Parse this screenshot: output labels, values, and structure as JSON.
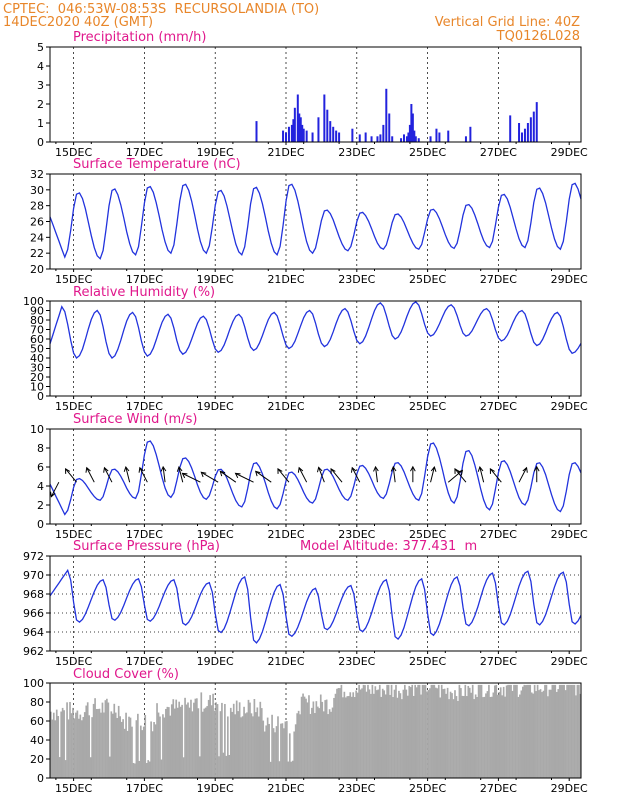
{
  "header": {
    "left_line1": "CPTEC:  046:53W-08:53S  RECURSOLANDIA (TO)",
    "left_line2": "14DEC2020 40Z (GMT)",
    "right_line1": "Vertical Grid Line: 40Z",
    "right_line2": "TQ0126L028"
  },
  "colors": {
    "header": "#e8862a",
    "title": "#e0188c",
    "line": "#2233dd",
    "bars": "#2222dd",
    "cloud": "#a9a9a9",
    "arrow": "#000000"
  },
  "x_axis": {
    "labels": [
      "15DEC",
      "17DEC",
      "19DEC",
      "21DEC",
      "23DEC",
      "25DEC",
      "27DEC",
      "29DEC"
    ]
  },
  "chart_data": [
    {
      "type": "bar",
      "title": "Precipitation (mm/h)",
      "ylim": [
        0,
        5
      ],
      "yticks": [
        0,
        1,
        2,
        3,
        4,
        5
      ],
      "hours": [
        140,
        158,
        160,
        162,
        164,
        165,
        166,
        168,
        169,
        170,
        171,
        172,
        174,
        178,
        182,
        186,
        188,
        190,
        192,
        194,
        196,
        205,
        210,
        214,
        218,
        222,
        224,
        226,
        228,
        230,
        232,
        238,
        240,
        242,
        243,
        244,
        245,
        246,
        247,
        248,
        250,
        258,
        262,
        264,
        270,
        282,
        285,
        312,
        318,
        320,
        322,
        324,
        326,
        328,
        330
      ],
      "values": [
        1.1,
        0.6,
        0.5,
        0.8,
        0.9,
        1.2,
        1.8,
        2.5,
        1.5,
        1.3,
        0.9,
        0.7,
        0.6,
        0.5,
        1.3,
        2.5,
        1.7,
        1.1,
        0.8,
        0.6,
        0.5,
        0.7,
        0.4,
        0.5,
        0.3,
        0.3,
        0.4,
        0.9,
        2.8,
        1.5,
        0.3,
        0.2,
        0.4,
        0.3,
        0.5,
        0.9,
        2.0,
        1.5,
        0.6,
        0.3,
        0.2,
        0.3,
        0.7,
        0.5,
        0.6,
        0.3,
        0.8,
        1.4,
        1.0,
        0.5,
        0.7,
        1.0,
        1.3,
        1.6,
        2.1
      ]
    },
    {
      "type": "line",
      "title": "Surface Temperature (nC)",
      "ylim": [
        20,
        32
      ],
      "yticks": [
        20,
        22,
        24,
        26,
        28,
        30,
        32
      ],
      "daily_min": [
        21.5,
        21.3,
        21.8,
        22.0,
        22.0,
        21.8,
        21.8,
        22.0,
        22.3,
        22.5,
        22.5,
        22.6,
        22.7,
        22.7,
        22.5,
        22.6
      ],
      "daily_max": [
        29.7,
        30.2,
        30.5,
        30.8,
        30.0,
        30.4,
        30.8,
        27.5,
        27.2,
        27.0,
        27.6,
        28.2,
        29.5,
        30.3,
        30.9,
        28.0
      ],
      "start_value": 26.6
    },
    {
      "type": "line",
      "title": "Relative Humidity (%)",
      "ylim": [
        0,
        100
      ],
      "yticks": [
        0,
        10,
        20,
        30,
        40,
        50,
        60,
        70,
        80,
        90,
        100
      ],
      "daily_min": [
        40,
        40,
        42,
        44,
        46,
        48,
        50,
        52,
        55,
        60,
        63,
        63,
        58,
        53,
        45,
        40
      ],
      "daily_max": [
        94,
        90,
        88,
        86,
        84,
        86,
        88,
        90,
        92,
        98,
        99,
        96,
        92,
        90,
        88,
        72
      ],
      "start_value": 55
    },
    {
      "type": "line",
      "title": "Surface Wind (m/s)",
      "ylim": [
        0,
        10
      ],
      "yticks": [
        0,
        2,
        4,
        6,
        8,
        10
      ],
      "daily_min": [
        1.0,
        2.5,
        2.7,
        2.8,
        2.6,
        1.8,
        1.6,
        2.2,
        2.5,
        2.7,
        2.5,
        2.2,
        1.5,
        2.0,
        1.3,
        2.0
      ],
      "daily_max": [
        4.8,
        5.8,
        8.8,
        7.0,
        5.8,
        6.5,
        5.5,
        5.8,
        6.2,
        6.5,
        8.6,
        7.8,
        6.7,
        6.5,
        6.5,
        4.2
      ],
      "start_value": 4.2,
      "vector_hours": [
        6,
        18,
        30,
        42,
        54,
        66,
        78,
        90,
        102,
        114,
        126,
        138,
        150,
        162,
        174,
        186,
        198,
        210,
        222,
        234,
        246,
        258,
        270,
        282,
        294,
        306,
        318,
        330
      ],
      "vector_directions": [
        110,
        240,
        250,
        250,
        260,
        250,
        265,
        260,
        215,
        220,
        225,
        215,
        225,
        240,
        250,
        255,
        240,
        250,
        265,
        265,
        270,
        280,
        310,
        240,
        260,
        240,
        290,
        270
      ]
    },
    {
      "type": "line",
      "title": "Surface Pressure (hPa)",
      "annotation": "Model Altitude: 377.431  m",
      "ylim": [
        962,
        972
      ],
      "yticks": [
        962,
        964,
        966,
        968,
        970,
        972
      ],
      "daily_min": [
        965.0,
        965.2,
        965.1,
        964.7,
        963.9,
        962.8,
        963.5,
        964.2,
        964.0,
        963.2,
        963.6,
        964.6,
        964.7,
        964.7,
        964.8,
        965.0
      ],
      "daily_max": [
        970.5,
        969.5,
        969.6,
        969.5,
        969.2,
        969.8,
        969.0,
        968.6,
        968.9,
        969.5,
        969.6,
        969.8,
        970.2,
        970.4,
        970.3,
        969.6
      ],
      "start_value": 967.8
    },
    {
      "type": "bar",
      "title": "Cloud Cover (%)",
      "ylim": [
        0,
        100
      ],
      "yticks": [
        0,
        20,
        40,
        60,
        80,
        100
      ],
      "day_means": [
        70,
        74,
        60,
        74,
        80,
        73,
        58,
        78,
        94,
        94,
        97,
        92,
        96,
        96,
        97,
        97
      ]
    }
  ]
}
